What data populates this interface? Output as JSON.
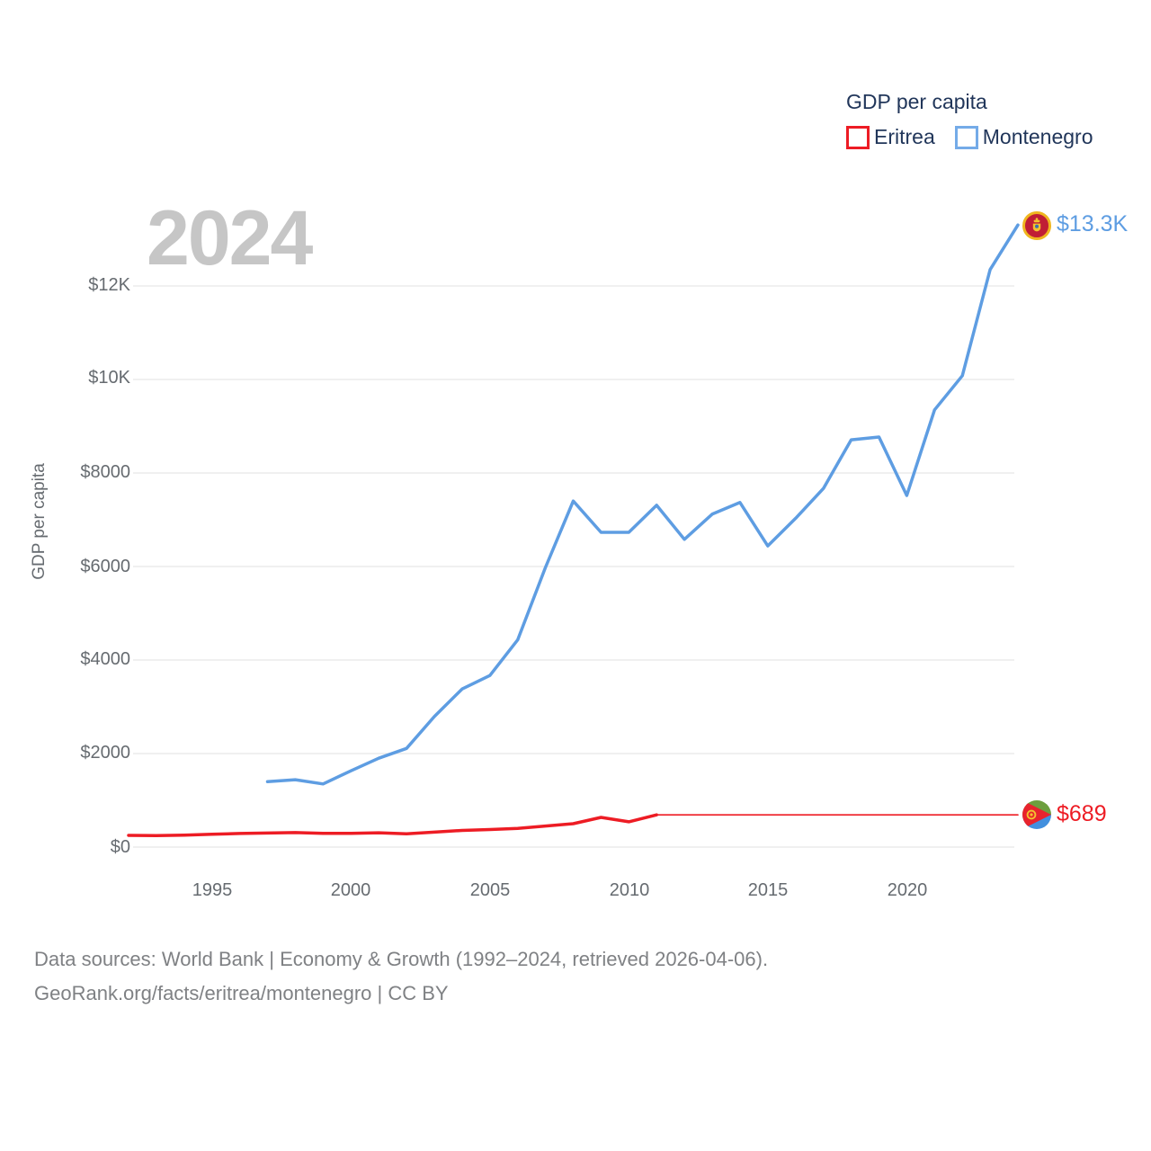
{
  "watermark_year": "2024",
  "legend": {
    "title": "GDP per capita",
    "items": [
      {
        "label": "Eritrea",
        "color": "#ed1c24"
      },
      {
        "label": "Montenegro",
        "color": "#74abe8"
      }
    ]
  },
  "end_labels": {
    "montenegro": "$13.3K",
    "eritrea": "$689"
  },
  "icons": {
    "eritrea_flag": "eritrea-flag",
    "montenegro_flag": "montenegro-flag"
  },
  "colors": {
    "eritrea_line": "#ed1c24",
    "montenegro_line": "#5e9de2",
    "gridline": "#ececec",
    "tick_text": "#666b70",
    "legend_text": "#21365a",
    "watermark": "#c6c6c6",
    "footer_text": "#7f8184"
  },
  "footer": {
    "line1": "Data sources: World Bank | Economy & Growth (1992–2024, retrieved 2026-04-06).",
    "line2": "GeoRank.org/facts/eritrea/montenegro | CC BY"
  },
  "chart_data": {
    "type": "line",
    "title": "GDP per capita",
    "xlabel": "",
    "ylabel": "GDP per capita",
    "xlim": [
      1992,
      2024
    ],
    "ylim": [
      0,
      13500
    ],
    "grid": true,
    "legend_position": "top-right",
    "x": [
      1992,
      1993,
      1994,
      1995,
      1996,
      1997,
      1998,
      1999,
      2000,
      2001,
      2002,
      2003,
      2004,
      2005,
      2006,
      2007,
      2008,
      2009,
      2010,
      2011,
      2012,
      2013,
      2014,
      2015,
      2016,
      2017,
      2018,
      2019,
      2020,
      2021,
      2022,
      2023,
      2024
    ],
    "series": [
      {
        "name": "Eritrea",
        "color": "#ed1c24",
        "thin_after_index": 19,
        "values": [
          250,
          245,
          255,
          275,
          290,
          300,
          310,
          295,
          295,
          305,
          285,
          320,
          355,
          375,
          400,
          450,
          500,
          635,
          540,
          689,
          689,
          689,
          689,
          689,
          689,
          689,
          689,
          689,
          689,
          689,
          689,
          689,
          689
        ],
        "end_value_label": "$689"
      },
      {
        "name": "Montenegro",
        "color": "#5e9de2",
        "values": [
          null,
          null,
          null,
          null,
          null,
          1400,
          1440,
          1350,
          1630,
          1900,
          2110,
          2790,
          3380,
          3670,
          4430,
          5980,
          7400,
          6730,
          6730,
          7310,
          6580,
          7120,
          7370,
          6440,
          7030,
          7670,
          8710,
          8770,
          7520,
          9350,
          10080,
          12350,
          13304
        ],
        "end_value_label": "$13.3K"
      }
    ],
    "yticks": [
      {
        "value": 12000,
        "label": "$12K"
      },
      {
        "value": 10000,
        "label": "$10K"
      },
      {
        "value": 8000,
        "label": "$8000"
      },
      {
        "value": 6000,
        "label": "$6000"
      },
      {
        "value": 4000,
        "label": "$4000"
      },
      {
        "value": 2000,
        "label": "$2000"
      },
      {
        "value": 0,
        "label": "$0"
      }
    ],
    "xticks": [
      {
        "value": 1995,
        "label": "1995"
      },
      {
        "value": 2000,
        "label": "2000"
      },
      {
        "value": 2005,
        "label": "2005"
      },
      {
        "value": 2010,
        "label": "2010"
      },
      {
        "value": 2015,
        "label": "2015"
      },
      {
        "value": 2020,
        "label": "2020"
      }
    ]
  }
}
